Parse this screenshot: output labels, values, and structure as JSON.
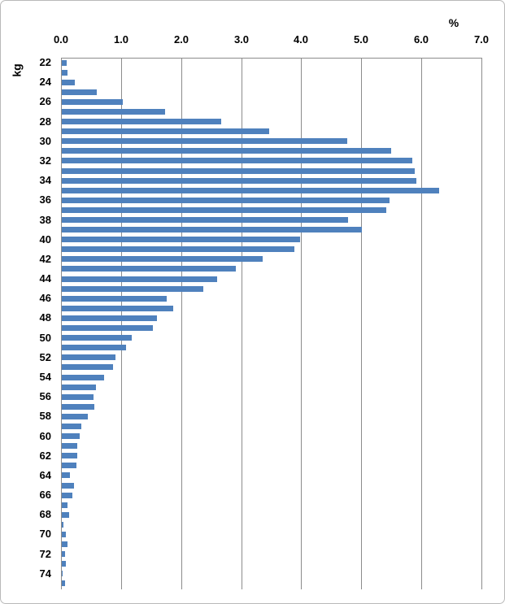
{
  "chart_data": {
    "type": "bar",
    "orientation": "horizontal",
    "title": "",
    "xlabel": "%",
    "ylabel": "kg",
    "xlim": [
      0.0,
      7.0
    ],
    "x_ticks": [
      "0.0",
      "1.0",
      "2.0",
      "3.0",
      "4.0",
      "5.0",
      "6.0",
      "7.0"
    ],
    "y_label_every": 2,
    "grid": true,
    "legend": false,
    "bar_color": "#4f81bd",
    "axis_color": "#8c8c8c",
    "categories": [
      22,
      23,
      24,
      25,
      26,
      27,
      28,
      29,
      30,
      31,
      32,
      33,
      34,
      35,
      36,
      37,
      38,
      39,
      40,
      41,
      42,
      43,
      44,
      45,
      46,
      47,
      48,
      49,
      50,
      51,
      52,
      53,
      54,
      55,
      56,
      57,
      58,
      59,
      60,
      61,
      62,
      63,
      64,
      65,
      66,
      67,
      68,
      69,
      70,
      71,
      72,
      73,
      74,
      75
    ],
    "values": [
      0.08,
      0.1,
      0.21,
      0.58,
      1.02,
      1.72,
      2.65,
      3.45,
      4.75,
      5.48,
      5.84,
      5.87,
      5.91,
      6.28,
      5.45,
      5.4,
      4.76,
      5.0,
      3.97,
      3.87,
      3.35,
      2.9,
      2.58,
      2.35,
      1.75,
      1.85,
      1.59,
      1.52,
      1.17,
      1.07,
      0.89,
      0.85,
      0.7,
      0.57,
      0.53,
      0.54,
      0.44,
      0.33,
      0.3,
      0.26,
      0.26,
      0.24,
      0.14,
      0.2,
      0.17,
      0.09,
      0.12,
      0.03,
      0.07,
      0.09,
      0.05,
      0.07,
      0.02,
      0.06
    ]
  }
}
